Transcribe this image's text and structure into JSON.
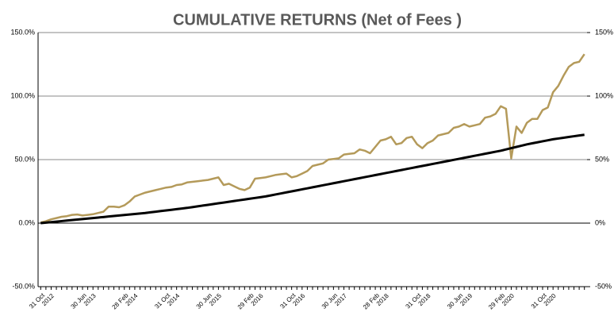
{
  "chart_data": {
    "type": "line",
    "title": "CUMULATIVE RETURNS (Net of Fees )",
    "categories": [
      "31 Oct 2012",
      null,
      null,
      null,
      null,
      null,
      null,
      null,
      "30 Jun 2013",
      null,
      null,
      null,
      null,
      null,
      null,
      null,
      "28 Feb 2014",
      null,
      null,
      null,
      null,
      null,
      null,
      null,
      "31 Oct 2014",
      null,
      null,
      null,
      null,
      null,
      null,
      null,
      "30 Jun 2015",
      null,
      null,
      null,
      null,
      null,
      null,
      null,
      "29 Feb 2016",
      null,
      null,
      null,
      null,
      null,
      null,
      null,
      "31 Oct 2016",
      null,
      null,
      null,
      null,
      null,
      null,
      null,
      "30 Jun 2017",
      null,
      null,
      null,
      null,
      null,
      null,
      null,
      "28 Feb 2018",
      null,
      null,
      null,
      null,
      null,
      null,
      null,
      "31 Oct 2018",
      null,
      null,
      null,
      null,
      null,
      null,
      null,
      "30 Jun 2019",
      null,
      null,
      null,
      null,
      null,
      null,
      null,
      "29 Feb 2020",
      null,
      null,
      null,
      null,
      null,
      null,
      null,
      "31 Oct 2020",
      null,
      null,
      null,
      null,
      null,
      null,
      null,
      null
    ],
    "series": [
      {
        "color": "#b49a5a",
        "values": [
          0.5,
          1.5,
          3,
          4,
          5,
          5.5,
          6.5,
          6.8,
          6,
          6.5,
          7,
          8,
          9,
          13,
          13,
          12.5,
          14,
          17,
          21,
          22.5,
          24,
          25,
          26,
          27,
          28,
          28.5,
          30,
          30.5,
          32,
          32.5,
          33,
          33.5,
          34,
          35,
          36,
          30,
          31,
          29,
          27,
          26,
          28,
          35,
          35.5,
          36,
          37,
          38,
          38.5,
          39,
          36,
          37,
          39,
          41,
          45,
          46,
          47,
          50,
          50.5,
          51,
          54,
          54.5,
          55,
          58,
          57,
          55,
          60,
          65,
          66,
          68,
          62,
          63,
          67,
          68,
          62,
          59,
          63,
          65,
          69,
          70,
          71,
          75,
          76,
          78,
          76,
          77,
          78,
          83,
          84,
          86,
          92,
          90,
          51,
          76,
          71,
          79,
          82,
          82,
          89,
          91,
          103,
          108,
          116,
          123,
          126,
          127,
          133
        ]
      },
      {
        "color": "#000000",
        "values": [
          0,
          0.4,
          0.8,
          1.2,
          1.6,
          2,
          2.4,
          2.8,
          3.2,
          3.6,
          4,
          4.4,
          4.8,
          5.2,
          5.6,
          6,
          6.4,
          6.8,
          7.2,
          7.6,
          8,
          8.5,
          9,
          9.5,
          10,
          10.5,
          11,
          11.5,
          12,
          12.6,
          13.2,
          13.8,
          14.4,
          15,
          15.6,
          16.2,
          16.8,
          17.4,
          18,
          18.6,
          19.2,
          19.8,
          20.4,
          21,
          21.8,
          22.6,
          23.4,
          24.2,
          25,
          25.8,
          26.6,
          27.4,
          28.2,
          29,
          29.8,
          30.6,
          31.4,
          32.2,
          33,
          33.8,
          34.6,
          35.4,
          36.2,
          37,
          37.8,
          38.6,
          39.4,
          40.2,
          41,
          41.8,
          42.6,
          43.4,
          44.2,
          45,
          45.8,
          46.6,
          47.4,
          48.2,
          49,
          49.8,
          50.6,
          51.4,
          52.2,
          53,
          53.8,
          54.6,
          55.4,
          56.2,
          57,
          58,
          59,
          60,
          61,
          62,
          62.8,
          63.6,
          64.4,
          65.2,
          66,
          66.6,
          67.2,
          67.8,
          68.4,
          69,
          69.5
        ]
      }
    ],
    "ylim": [
      -50,
      150
    ],
    "yticks": [
      {
        "value": -50,
        "label": "-50.0%"
      },
      {
        "value": 0,
        "label": "0.0%"
      },
      {
        "value": 50,
        "label": "50.0%"
      },
      {
        "value": 100,
        "label": "100.0%"
      },
      {
        "value": 150,
        "label": "150.0%"
      }
    ],
    "y2lim": [
      -50,
      150
    ],
    "y2ticks": [
      {
        "value": -50,
        "label": "-50%"
      },
      {
        "value": 0,
        "label": "0%"
      },
      {
        "value": 50,
        "label": "50%"
      },
      {
        "value": 100,
        "label": "100%"
      },
      {
        "value": 150,
        "label": "150%"
      }
    ],
    "grid": true
  }
}
